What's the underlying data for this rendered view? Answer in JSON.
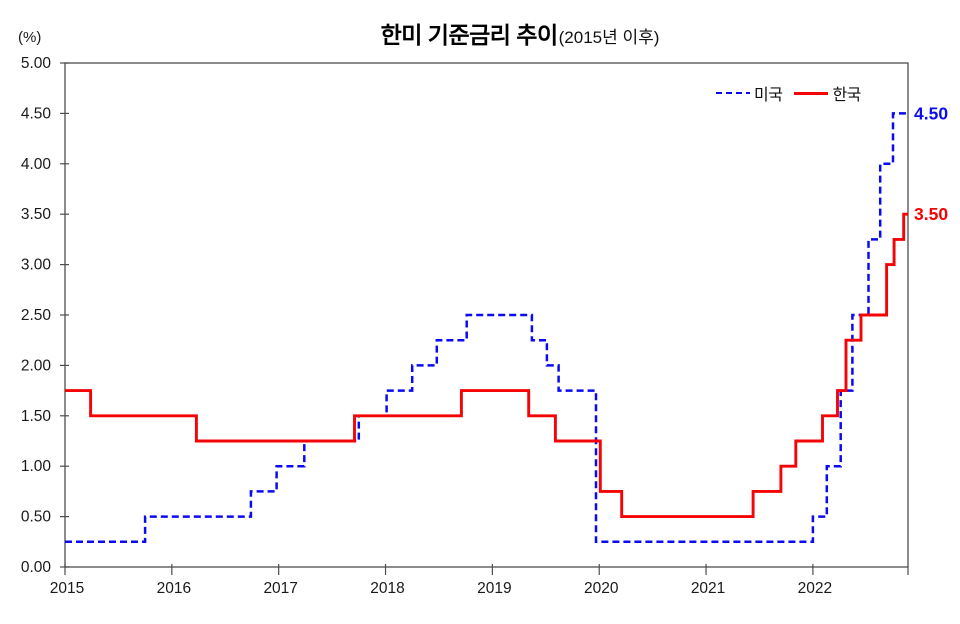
{
  "title": {
    "main": "한미 기준금리 추이",
    "sub": "(2015년 이후)"
  },
  "y_axis": {
    "unit_label": "(%)"
  },
  "chart_data": {
    "type": "line",
    "subtype": "step",
    "title": "한미 기준금리 추이(2015년 이후)",
    "ylabel": "(%)",
    "ylim": [
      0,
      5
    ],
    "xlim": [
      2015,
      2022.89
    ],
    "grid": false,
    "legend_position": "top-right-inside",
    "y_ticks": [
      "0.00",
      "0.50",
      "1.00",
      "1.50",
      "2.00",
      "2.50",
      "3.00",
      "3.50",
      "4.00",
      "4.50",
      "5.00"
    ],
    "x_ticks": [
      "2015",
      "2016",
      "2017",
      "2018",
      "2019",
      "2020",
      "2021",
      "2022"
    ],
    "series": [
      {
        "name": "미국",
        "color": "#0b0bf0",
        "line_style": "dashed",
        "end_label": "4.50",
        "final_value": 4.5,
        "points": [
          [
            2015.0,
            0.25
          ],
          [
            2015.75,
            0.5
          ],
          [
            2016.74,
            0.75
          ],
          [
            2016.98,
            1.0
          ],
          [
            2017.24,
            1.25
          ],
          [
            2017.75,
            1.5
          ],
          [
            2018.01,
            1.75
          ],
          [
            2018.25,
            2.0
          ],
          [
            2018.48,
            2.25
          ],
          [
            2018.76,
            2.5
          ],
          [
            2019.37,
            2.25
          ],
          [
            2019.51,
            2.0
          ],
          [
            2019.62,
            1.75
          ],
          [
            2019.97,
            0.25
          ],
          [
            2022.0,
            0.5
          ],
          [
            2022.13,
            1.0
          ],
          [
            2022.26,
            1.75
          ],
          [
            2022.37,
            2.5
          ],
          [
            2022.52,
            3.25
          ],
          [
            2022.63,
            4.0
          ],
          [
            2022.75,
            4.5
          ]
        ]
      },
      {
        "name": "한국",
        "color": "#f40404",
        "line_style": "solid",
        "end_label": "3.50",
        "final_value": 3.5,
        "points": [
          [
            2015.0,
            1.75
          ],
          [
            2015.24,
            1.5
          ],
          [
            2016.23,
            1.25
          ],
          [
            2017.71,
            1.5
          ],
          [
            2018.71,
            1.75
          ],
          [
            2019.34,
            1.5
          ],
          [
            2019.59,
            1.25
          ],
          [
            2020.01,
            0.75
          ],
          [
            2020.21,
            0.5
          ],
          [
            2021.44,
            0.75
          ],
          [
            2021.7,
            1.0
          ],
          [
            2021.84,
            1.25
          ],
          [
            2022.09,
            1.5
          ],
          [
            2022.23,
            1.75
          ],
          [
            2022.31,
            2.25
          ],
          [
            2022.45,
            2.5
          ],
          [
            2022.69,
            3.0
          ],
          [
            2022.76,
            3.25
          ],
          [
            2022.85,
            3.5
          ]
        ]
      }
    ]
  }
}
